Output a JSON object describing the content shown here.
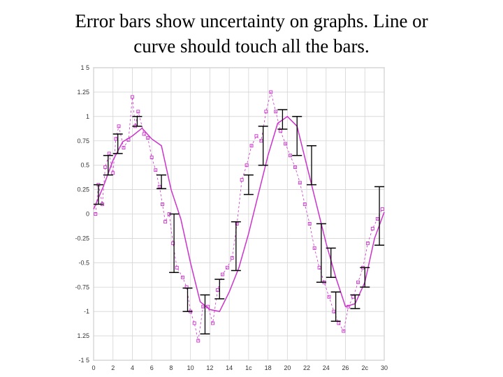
{
  "slide": {
    "title_line1": "Error bars show uncertainty on graphs. Line or",
    "title_line2": "curve should touch all the bars."
  },
  "chart_data": {
    "type": "scatter",
    "title": "",
    "xlabel": "",
    "ylabel": "",
    "xlim": [
      0,
      30
    ],
    "ylim": [
      -1.5,
      1.5
    ],
    "grid": true,
    "x_ticks": [
      0,
      2,
      4,
      6,
      8,
      10,
      12,
      14,
      16,
      18,
      20,
      22,
      24,
      26,
      28,
      30
    ],
    "x_tick_labels": [
      "0",
      "2",
      "4",
      "6",
      "8",
      "10",
      "12",
      "14",
      "1c",
      "18",
      "20",
      "22",
      "24",
      "26",
      "2c",
      "30"
    ],
    "y_ticks": [
      1.5,
      1.25,
      1.0,
      0.75,
      0.5,
      0.25,
      0,
      -0.25,
      -0.5,
      -0.75,
      -1.0,
      -1.25,
      -1.5
    ],
    "y_tick_labels": [
      "1 5",
      "1.25",
      "1",
      "0.75",
      "0.5",
      "0.25",
      "0",
      "-0.25",
      "-0.5",
      "-0.75",
      "-1",
      "1.25",
      "-1 5"
    ],
    "colors": {
      "series": "#cc33cc",
      "error_bars": "#000000",
      "grid": "#d4d4d4",
      "axes": "#888888"
    },
    "series": [
      {
        "style": "line-with-error-bars",
        "x": [
          0,
          1,
          2,
          3,
          4,
          5,
          6,
          7,
          8,
          9,
          10,
          11,
          12,
          13,
          14,
          15,
          16,
          17,
          18,
          19,
          20,
          21,
          22,
          23,
          24,
          25,
          26,
          27,
          28,
          29,
          30
        ],
        "y": [
          0.05,
          0.28,
          0.55,
          0.74,
          0.8,
          0.88,
          0.77,
          0.7,
          0.25,
          -0.05,
          -0.5,
          -0.9,
          -0.98,
          -1.0,
          -0.8,
          -0.55,
          -0.2,
          0.2,
          0.6,
          0.93,
          1.0,
          0.9,
          0.5,
          0.1,
          -0.3,
          -0.65,
          -0.95,
          -0.92,
          -0.7,
          -0.25,
          0.02
        ],
        "error_bars": [
          {
            "x": 0.5,
            "y": 0.2,
            "err": 0.1
          },
          {
            "x": 1.5,
            "y": 0.5,
            "err": 0.1
          },
          {
            "x": 2.5,
            "y": 0.72,
            "err": 0.1
          },
          {
            "x": 4.5,
            "y": 0.95,
            "err": 0.05
          },
          {
            "x": 7.0,
            "y": 0.33,
            "err": 0.07
          },
          {
            "x": 8.3,
            "y": -0.3,
            "err": 0.3
          },
          {
            "x": 9.7,
            "y": -0.88,
            "err": 0.12
          },
          {
            "x": 11.5,
            "y": -1.03,
            "err": 0.2
          },
          {
            "x": 13.0,
            "y": -0.77,
            "err": 0.1
          },
          {
            "x": 14.7,
            "y": -0.33,
            "err": 0.25
          },
          {
            "x": 16.0,
            "y": 0.3,
            "err": 0.1
          },
          {
            "x": 17.5,
            "y": 0.7,
            "err": 0.2
          },
          {
            "x": 19.5,
            "y": 0.97,
            "err": 0.1
          },
          {
            "x": 21.0,
            "y": 0.8,
            "err": 0.2
          },
          {
            "x": 22.5,
            "y": 0.5,
            "err": 0.2
          },
          {
            "x": 23.5,
            "y": -0.4,
            "err": 0.3
          },
          {
            "x": 24.5,
            "y": -0.5,
            "err": 0.15
          },
          {
            "x": 25.0,
            "y": -0.95,
            "err": 0.15
          },
          {
            "x": 27.0,
            "y": -0.9,
            "err": 0.07
          },
          {
            "x": 28.0,
            "y": -0.65,
            "err": 0.1
          },
          {
            "x": 29.5,
            "y": -0.02,
            "err": 0.3
          }
        ]
      },
      {
        "style": "points-dashed",
        "x": [
          0.2,
          0.5,
          0.9,
          1.2,
          1.6,
          2.0,
          2.3,
          2.6,
          3.1,
          3.6,
          4.0,
          4.3,
          4.6,
          5.2,
          5.6,
          6.0,
          6.4,
          6.8,
          7.1,
          7.4,
          7.8,
          8.2,
          8.6,
          9.2,
          9.6,
          10.0,
          10.4,
          10.8,
          11.3,
          11.8,
          12.3,
          12.8,
          13.3,
          13.8,
          14.3,
          14.8,
          15.3,
          15.8,
          16.3,
          16.8,
          17.3,
          17.8,
          18.3,
          18.8,
          19.3,
          19.8,
          20.3,
          20.8,
          21.3,
          21.8,
          22.3,
          22.8,
          23.3,
          23.8,
          24.3,
          24.8,
          25.3,
          25.8,
          26.3,
          26.8,
          27.3,
          27.8,
          28.3,
          28.8,
          29.3,
          29.8
        ],
        "y": [
          0.0,
          0.3,
          0.1,
          0.48,
          0.62,
          0.42,
          0.77,
          0.9,
          0.68,
          0.76,
          1.2,
          0.9,
          1.05,
          0.82,
          0.78,
          0.58,
          0.45,
          0.28,
          0.1,
          -0.08,
          0.0,
          -0.3,
          -0.55,
          -0.65,
          -0.75,
          -1.0,
          -1.12,
          -1.3,
          -0.95,
          -0.95,
          -1.12,
          -0.78,
          -0.62,
          -0.55,
          -0.45,
          -0.1,
          0.35,
          0.5,
          0.7,
          0.8,
          0.75,
          1.05,
          1.25,
          1.05,
          0.85,
          0.72,
          0.6,
          0.48,
          0.32,
          0.1,
          -0.1,
          -0.35,
          -0.55,
          -0.7,
          -0.85,
          -1.0,
          -1.12,
          -1.2,
          -0.95,
          -0.85,
          -0.7,
          -0.55,
          -0.3,
          -0.15,
          -0.05,
          0.05
        ]
      }
    ]
  }
}
